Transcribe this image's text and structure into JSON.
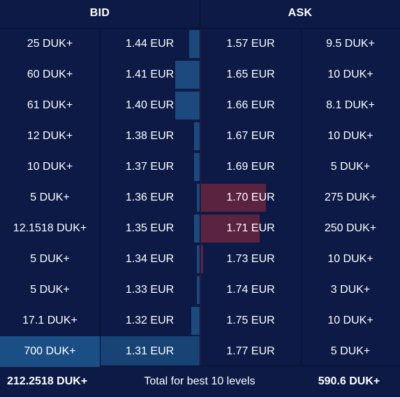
{
  "header": {
    "bid_title": "BID",
    "ask_title": "ASK"
  },
  "rows": [
    {
      "bid_qty": "25 DUK+",
      "bid_price": "1.44 EUR",
      "ask_price": "1.57 EUR",
      "ask_qty": "9.5 DUK+",
      "bid_depth": 0.04,
      "ask_depth": 0.0
    },
    {
      "bid_qty": "60 DUK+",
      "bid_price": "1.41 EUR",
      "ask_price": "1.65 EUR",
      "ask_qty": "10 DUK+",
      "bid_depth": 0.09,
      "ask_depth": 0.0
    },
    {
      "bid_qty": "61 DUK+",
      "bid_price": "1.40 EUR",
      "ask_price": "1.66 EUR",
      "ask_qty": "8.1 DUK+",
      "bid_depth": 0.09,
      "ask_depth": 0.0
    },
    {
      "bid_qty": "12 DUK+",
      "bid_price": "1.38 EUR",
      "ask_price": "1.67 EUR",
      "ask_qty": "10 DUK+",
      "bid_depth": 0.02,
      "ask_depth": 0.0
    },
    {
      "bid_qty": "10 DUK+",
      "bid_price": "1.37 EUR",
      "ask_price": "1.69 EUR",
      "ask_qty": "5 DUK+",
      "bid_depth": 0.02,
      "ask_depth": 0.0
    },
    {
      "bid_qty": "5 DUK+",
      "bid_price": "1.36 EUR",
      "ask_price": "1.70 EUR",
      "ask_qty": "275 DUK+",
      "bid_depth": 0.01,
      "ask_depth": 0.32
    },
    {
      "bid_qty": "12.1518 DUK+",
      "bid_price": "1.35 EUR",
      "ask_price": "1.71 EUR",
      "ask_qty": "250 DUK+",
      "bid_depth": 0.02,
      "ask_depth": 0.29
    },
    {
      "bid_qty": "5 DUK+",
      "bid_price": "1.34 EUR",
      "ask_price": "1.73 EUR",
      "ask_qty": "10 DUK+",
      "bid_depth": 0.01,
      "ask_depth": 0.01
    },
    {
      "bid_qty": "5 DUK+",
      "bid_price": "1.33 EUR",
      "ask_price": "1.74 EUR",
      "ask_qty": "3 DUK+",
      "bid_depth": 0.01,
      "ask_depth": 0.0
    },
    {
      "bid_qty": "17.1 DUK+",
      "bid_price": "1.32 EUR",
      "ask_price": "1.75 EUR",
      "ask_qty": "10 DUK+",
      "bid_depth": 0.03,
      "ask_depth": 0.0
    },
    {
      "bid_qty": "700 DUK+",
      "bid_price": "1.31 EUR",
      "ask_price": "1.77 EUR",
      "ask_qty": "5 DUK+",
      "bid_depth": 1.0,
      "ask_depth": 0.0
    }
  ],
  "footer": {
    "bid_total": "212.2518 DUK+",
    "label": "Total for best 10 levels",
    "ask_total": "590.6 DUK+"
  },
  "colors": {
    "background": "#0c1a45",
    "bid_bar": "#1c4a7e",
    "ask_bar": "#5a2340"
  }
}
